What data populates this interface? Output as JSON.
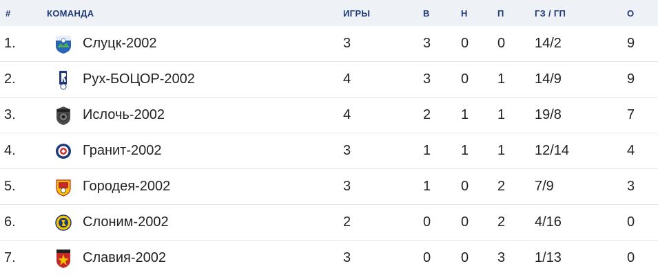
{
  "header": {
    "pos": "#",
    "team": "КОМАНДА",
    "games": "ИГРЫ",
    "w": "В",
    "d": "Н",
    "l": "П",
    "goals": "ГЗ / ГП",
    "pts": "О"
  },
  "rows": [
    {
      "pos": "1.",
      "team": "Слуцк-2002",
      "games": "3",
      "w": "3",
      "d": "0",
      "l": "0",
      "goals": "14/2",
      "pts": "9",
      "logo": "slutsk-logo"
    },
    {
      "pos": "2.",
      "team": "Рух-БОЦОР-2002",
      "games": "4",
      "w": "3",
      "d": "0",
      "l": "1",
      "goals": "14/9",
      "pts": "9",
      "logo": "rukh-logo"
    },
    {
      "pos": "3.",
      "team": "Ислочь-2002",
      "games": "4",
      "w": "2",
      "d": "1",
      "l": "1",
      "goals": "19/8",
      "pts": "7",
      "logo": "isloch-logo"
    },
    {
      "pos": "4.",
      "team": "Гранит-2002",
      "games": "3",
      "w": "1",
      "d": "1",
      "l": "1",
      "goals": "12/14",
      "pts": "4",
      "logo": "granit-logo"
    },
    {
      "pos": "5.",
      "team": "Городея-2002",
      "games": "3",
      "w": "1",
      "d": "0",
      "l": "2",
      "goals": "7/9",
      "pts": "3",
      "logo": "gorodeya-logo"
    },
    {
      "pos": "6.",
      "team": "Слоним-2002",
      "games": "2",
      "w": "0",
      "d": "0",
      "l": "2",
      "goals": "4/16",
      "pts": "0",
      "logo": "slonim-logo"
    },
    {
      "pos": "7.",
      "team": "Славия-2002",
      "games": "3",
      "w": "0",
      "d": "0",
      "l": "3",
      "goals": "1/13",
      "pts": "0",
      "logo": "slavia-logo"
    }
  ]
}
